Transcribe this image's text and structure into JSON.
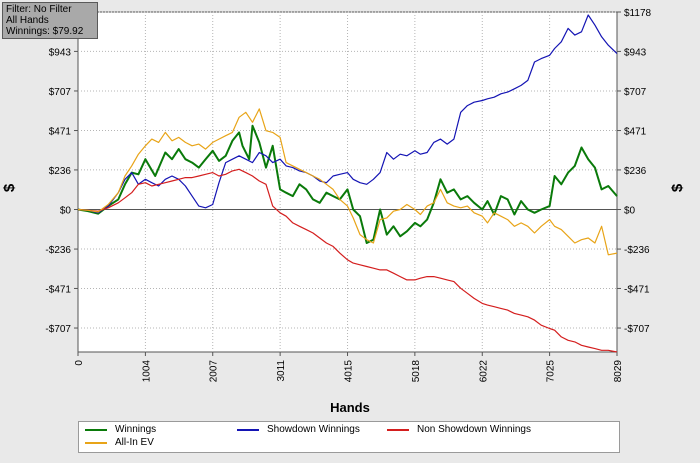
{
  "filter": {
    "line1": "Filter: No Filter",
    "line2": "All Hands",
    "line3": "Winnings: $79.92"
  },
  "chart_data": {
    "type": "line",
    "xlabel": "Hands",
    "ylabel_left": "$",
    "ylabel_right": "$",
    "xlim": [
      0,
      8029
    ],
    "ylim": [
      -850,
      1178
    ],
    "x_ticks": [
      0,
      1004,
      2007,
      3011,
      4015,
      5018,
      6022,
      7025,
      8029
    ],
    "y_ticks": [
      -707,
      -471,
      -236,
      0,
      236,
      471,
      707,
      943,
      1178
    ],
    "y_tick_labels": [
      "-$707",
      "-$471",
      "-$236",
      "$0",
      "$236",
      "$471",
      "$707",
      "$943",
      "$1178"
    ],
    "grid": true,
    "legend_placement": "bottom",
    "series": [
      {
        "name": "Winnings",
        "color": "#0a7a0a",
        "points": [
          [
            0,
            0
          ],
          [
            150,
            -10
          ],
          [
            300,
            -25
          ],
          [
            450,
            20
          ],
          [
            600,
            60
          ],
          [
            700,
            150
          ],
          [
            800,
            220
          ],
          [
            900,
            210
          ],
          [
            1004,
            300
          ],
          [
            1150,
            200
          ],
          [
            1300,
            340
          ],
          [
            1400,
            300
          ],
          [
            1500,
            360
          ],
          [
            1600,
            300
          ],
          [
            1700,
            280
          ],
          [
            1800,
            250
          ],
          [
            1900,
            300
          ],
          [
            2007,
            350
          ],
          [
            2100,
            290
          ],
          [
            2200,
            320
          ],
          [
            2300,
            410
          ],
          [
            2400,
            460
          ],
          [
            2450,
            380
          ],
          [
            2550,
            300
          ],
          [
            2600,
            500
          ],
          [
            2700,
            400
          ],
          [
            2800,
            250
          ],
          [
            2900,
            380
          ],
          [
            3011,
            120
          ],
          [
            3100,
            100
          ],
          [
            3200,
            80
          ],
          [
            3300,
            150
          ],
          [
            3400,
            120
          ],
          [
            3500,
            60
          ],
          [
            3600,
            40
          ],
          [
            3700,
            100
          ],
          [
            3800,
            80
          ],
          [
            3900,
            60
          ],
          [
            4015,
            120
          ],
          [
            4100,
            0
          ],
          [
            4200,
            -40
          ],
          [
            4300,
            -200
          ],
          [
            4400,
            -180
          ],
          [
            4500,
            0
          ],
          [
            4600,
            -150
          ],
          [
            4700,
            -100
          ],
          [
            4800,
            -160
          ],
          [
            4900,
            -130
          ],
          [
            5018,
            -80
          ],
          [
            5100,
            -100
          ],
          [
            5200,
            -60
          ],
          [
            5300,
            40
          ],
          [
            5400,
            180
          ],
          [
            5500,
            100
          ],
          [
            5600,
            120
          ],
          [
            5700,
            60
          ],
          [
            5800,
            80
          ],
          [
            5900,
            40
          ],
          [
            6022,
            0
          ],
          [
            6100,
            50
          ],
          [
            6200,
            -30
          ],
          [
            6300,
            80
          ],
          [
            6400,
            60
          ],
          [
            6500,
            -30
          ],
          [
            6600,
            50
          ],
          [
            6700,
            0
          ],
          [
            6800,
            -20
          ],
          [
            6900,
            0
          ],
          [
            7025,
            20
          ],
          [
            7100,
            200
          ],
          [
            7200,
            150
          ],
          [
            7300,
            220
          ],
          [
            7400,
            260
          ],
          [
            7500,
            370
          ],
          [
            7600,
            300
          ],
          [
            7700,
            250
          ],
          [
            7800,
            120
          ],
          [
            7900,
            140
          ],
          [
            8029,
            80
          ]
        ]
      },
      {
        "name": "Showdown Winnings",
        "color": "#1414b4",
        "points": [
          [
            0,
            0
          ],
          [
            150,
            -5
          ],
          [
            300,
            -20
          ],
          [
            450,
            20
          ],
          [
            600,
            100
          ],
          [
            700,
            180
          ],
          [
            800,
            220
          ],
          [
            900,
            150
          ],
          [
            1004,
            180
          ],
          [
            1100,
            160
          ],
          [
            1200,
            140
          ],
          [
            1300,
            180
          ],
          [
            1400,
            200
          ],
          [
            1500,
            180
          ],
          [
            1600,
            140
          ],
          [
            1700,
            80
          ],
          [
            1800,
            20
          ],
          [
            1900,
            10
          ],
          [
            2007,
            30
          ],
          [
            2100,
            160
          ],
          [
            2200,
            280
          ],
          [
            2300,
            300
          ],
          [
            2400,
            320
          ],
          [
            2500,
            300
          ],
          [
            2600,
            280
          ],
          [
            2700,
            340
          ],
          [
            2800,
            320
          ],
          [
            2900,
            280
          ],
          [
            3011,
            300
          ],
          [
            3100,
            260
          ],
          [
            3200,
            250
          ],
          [
            3300,
            230
          ],
          [
            3400,
            220
          ],
          [
            3500,
            200
          ],
          [
            3600,
            170
          ],
          [
            3700,
            160
          ],
          [
            3800,
            200
          ],
          [
            3900,
            210
          ],
          [
            4015,
            220
          ],
          [
            4100,
            180
          ],
          [
            4200,
            160
          ],
          [
            4300,
            150
          ],
          [
            4400,
            180
          ],
          [
            4500,
            220
          ],
          [
            4600,
            340
          ],
          [
            4700,
            300
          ],
          [
            4800,
            330
          ],
          [
            4900,
            320
          ],
          [
            5018,
            350
          ],
          [
            5100,
            330
          ],
          [
            5200,
            340
          ],
          [
            5300,
            400
          ],
          [
            5400,
            420
          ],
          [
            5500,
            390
          ],
          [
            5600,
            420
          ],
          [
            5700,
            580
          ],
          [
            5800,
            620
          ],
          [
            5900,
            640
          ],
          [
            6022,
            650
          ],
          [
            6100,
            660
          ],
          [
            6200,
            670
          ],
          [
            6300,
            690
          ],
          [
            6400,
            700
          ],
          [
            6500,
            720
          ],
          [
            6600,
            740
          ],
          [
            6700,
            770
          ],
          [
            6800,
            880
          ],
          [
            6900,
            900
          ],
          [
            7025,
            920
          ],
          [
            7100,
            960
          ],
          [
            7200,
            1000
          ],
          [
            7300,
            1080
          ],
          [
            7400,
            1040
          ],
          [
            7500,
            1060
          ],
          [
            7600,
            1160
          ],
          [
            7700,
            1100
          ],
          [
            7800,
            1030
          ],
          [
            7900,
            980
          ],
          [
            8029,
            930
          ]
        ]
      },
      {
        "name": "Non Showdown Winnings",
        "color": "#d41e1e",
        "points": [
          [
            0,
            0
          ],
          [
            150,
            -5
          ],
          [
            300,
            -10
          ],
          [
            450,
            10
          ],
          [
            600,
            40
          ],
          [
            700,
            70
          ],
          [
            800,
            100
          ],
          [
            900,
            150
          ],
          [
            1004,
            160
          ],
          [
            1100,
            140
          ],
          [
            1200,
            150
          ],
          [
            1300,
            160
          ],
          [
            1400,
            170
          ],
          [
            1500,
            180
          ],
          [
            1600,
            190
          ],
          [
            1700,
            190
          ],
          [
            1800,
            200
          ],
          [
            1900,
            210
          ],
          [
            2007,
            220
          ],
          [
            2100,
            200
          ],
          [
            2200,
            210
          ],
          [
            2300,
            230
          ],
          [
            2400,
            240
          ],
          [
            2500,
            220
          ],
          [
            2600,
            200
          ],
          [
            2700,
            170
          ],
          [
            2800,
            150
          ],
          [
            2900,
            20
          ],
          [
            3011,
            -20
          ],
          [
            3100,
            -40
          ],
          [
            3200,
            -80
          ],
          [
            3300,
            -100
          ],
          [
            3400,
            -120
          ],
          [
            3500,
            -140
          ],
          [
            3600,
            -170
          ],
          [
            3700,
            -200
          ],
          [
            3800,
            -220
          ],
          [
            3900,
            -260
          ],
          [
            4015,
            -300
          ],
          [
            4100,
            -320
          ],
          [
            4200,
            -330
          ],
          [
            4300,
            -340
          ],
          [
            4400,
            -350
          ],
          [
            4500,
            -360
          ],
          [
            4600,
            -360
          ],
          [
            4700,
            -380
          ],
          [
            4800,
            -400
          ],
          [
            4900,
            -420
          ],
          [
            5018,
            -420
          ],
          [
            5100,
            -410
          ],
          [
            5200,
            -400
          ],
          [
            5300,
            -400
          ],
          [
            5400,
            -410
          ],
          [
            5500,
            -420
          ],
          [
            5600,
            -430
          ],
          [
            5700,
            -470
          ],
          [
            5800,
            -500
          ],
          [
            5900,
            -530
          ],
          [
            6022,
            -560
          ],
          [
            6100,
            -570
          ],
          [
            6200,
            -580
          ],
          [
            6300,
            -590
          ],
          [
            6400,
            -600
          ],
          [
            6500,
            -620
          ],
          [
            6600,
            -630
          ],
          [
            6700,
            -640
          ],
          [
            6800,
            -660
          ],
          [
            6900,
            -690
          ],
          [
            7025,
            -710
          ],
          [
            7100,
            -720
          ],
          [
            7200,
            -760
          ],
          [
            7300,
            -780
          ],
          [
            7400,
            -790
          ],
          [
            7500,
            -810
          ],
          [
            7600,
            -820
          ],
          [
            7700,
            -830
          ],
          [
            7800,
            -840
          ],
          [
            7900,
            -840
          ],
          [
            8029,
            -850
          ]
        ]
      },
      {
        "name": "All-In EV",
        "color": "#e8a418",
        "points": [
          [
            0,
            0
          ],
          [
            150,
            -5
          ],
          [
            300,
            -15
          ],
          [
            450,
            30
          ],
          [
            600,
            100
          ],
          [
            700,
            200
          ],
          [
            800,
            260
          ],
          [
            900,
            330
          ],
          [
            1004,
            380
          ],
          [
            1100,
            420
          ],
          [
            1200,
            400
          ],
          [
            1300,
            460
          ],
          [
            1400,
            410
          ],
          [
            1500,
            430
          ],
          [
            1600,
            400
          ],
          [
            1700,
            380
          ],
          [
            1800,
            390
          ],
          [
            1900,
            360
          ],
          [
            2007,
            400
          ],
          [
            2100,
            420
          ],
          [
            2200,
            440
          ],
          [
            2300,
            460
          ],
          [
            2400,
            550
          ],
          [
            2500,
            580
          ],
          [
            2600,
            520
          ],
          [
            2700,
            600
          ],
          [
            2800,
            470
          ],
          [
            2900,
            460
          ],
          [
            3011,
            430
          ],
          [
            3100,
            280
          ],
          [
            3200,
            260
          ],
          [
            3300,
            240
          ],
          [
            3400,
            220
          ],
          [
            3500,
            200
          ],
          [
            3600,
            180
          ],
          [
            3700,
            150
          ],
          [
            3800,
            120
          ],
          [
            3900,
            60
          ],
          [
            4015,
            20
          ],
          [
            4100,
            -50
          ],
          [
            4200,
            -150
          ],
          [
            4300,
            -180
          ],
          [
            4400,
            -200
          ],
          [
            4500,
            -60
          ],
          [
            4600,
            -50
          ],
          [
            4700,
            -10
          ],
          [
            4800,
            0
          ],
          [
            4900,
            30
          ],
          [
            5018,
            0
          ],
          [
            5100,
            -30
          ],
          [
            5200,
            20
          ],
          [
            5300,
            40
          ],
          [
            5400,
            120
          ],
          [
            5500,
            40
          ],
          [
            5600,
            20
          ],
          [
            5700,
            10
          ],
          [
            5800,
            20
          ],
          [
            5900,
            -20
          ],
          [
            6022,
            -40
          ],
          [
            6100,
            -80
          ],
          [
            6200,
            -20
          ],
          [
            6300,
            -40
          ],
          [
            6400,
            -60
          ],
          [
            6500,
            -100
          ],
          [
            6600,
            -80
          ],
          [
            6700,
            -100
          ],
          [
            6800,
            -140
          ],
          [
            6900,
            -100
          ],
          [
            7025,
            -60
          ],
          [
            7100,
            -100
          ],
          [
            7200,
            -120
          ],
          [
            7300,
            -160
          ],
          [
            7400,
            -200
          ],
          [
            7500,
            -180
          ],
          [
            7600,
            -170
          ],
          [
            7700,
            -200
          ],
          [
            7800,
            -100
          ],
          [
            7900,
            -270
          ],
          [
            8029,
            -260
          ]
        ]
      }
    ]
  }
}
